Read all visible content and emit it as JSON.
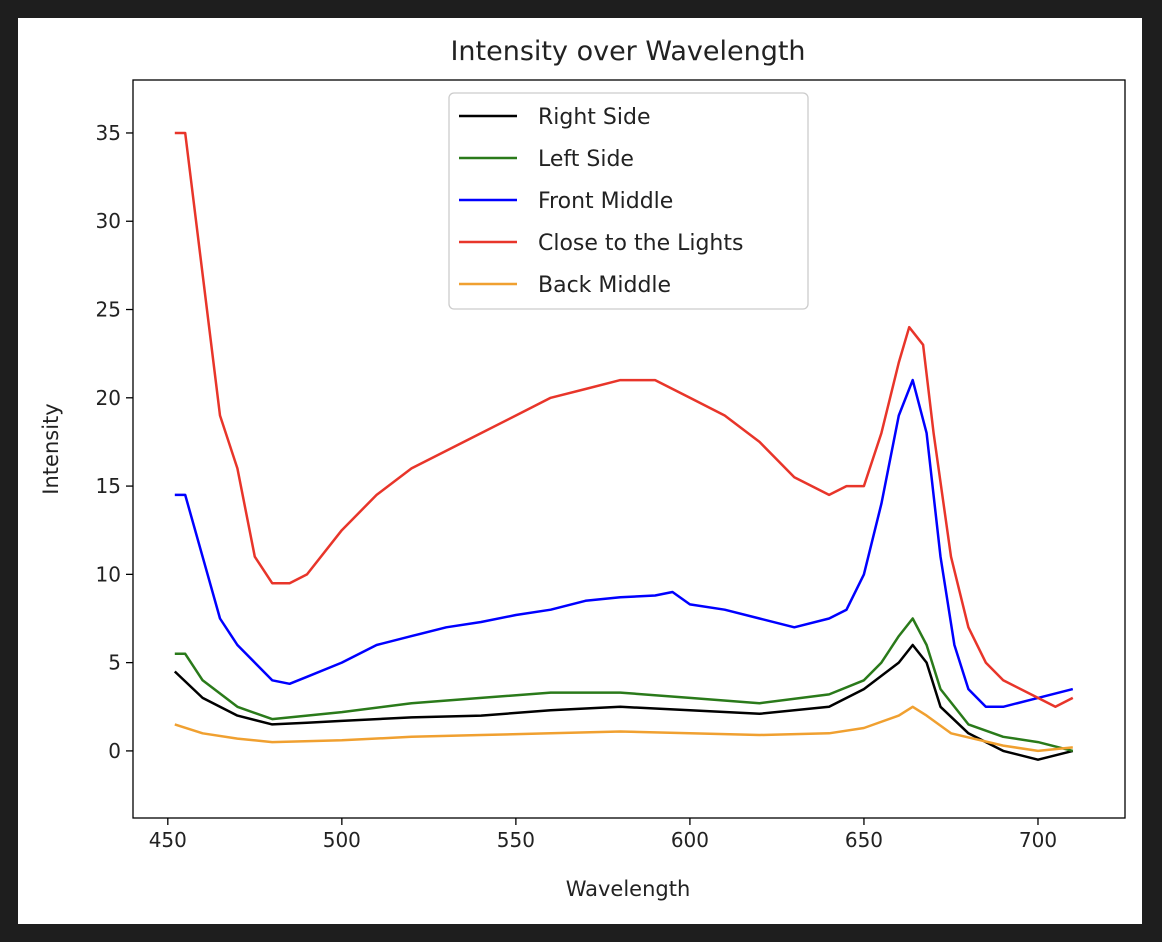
{
  "chart_data": {
    "type": "line",
    "title": "Intensity over Wavelength",
    "xlabel": "Wavelength",
    "ylabel": "Intensity",
    "xlim": [
      440,
      725
    ],
    "ylim": [
      -3.8,
      38
    ],
    "xticks": [
      450,
      500,
      550,
      600,
      650,
      700
    ],
    "yticks": [
      0,
      5,
      10,
      15,
      20,
      25,
      30,
      35
    ],
    "grid": false,
    "legend_position": "top-center",
    "series": [
      {
        "name": "Right Side",
        "color": "#000000",
        "x": [
          452,
          460,
          470,
          480,
          490,
          500,
          520,
          540,
          560,
          580,
          600,
          620,
          640,
          650,
          660,
          664,
          668,
          672,
          680,
          690,
          700,
          710
        ],
        "y": [
          4.5,
          3,
          2,
          1.5,
          1.6,
          1.7,
          1.9,
          2,
          2.3,
          2.5,
          2.3,
          2.1,
          2.5,
          3.5,
          5,
          6,
          5,
          2.5,
          1,
          0,
          -0.5,
          0
        ]
      },
      {
        "name": "Left Side",
        "color": "#2a7a1a",
        "x": [
          452,
          455,
          460,
          470,
          480,
          490,
          500,
          520,
          540,
          560,
          580,
          600,
          620,
          640,
          650,
          655,
          660,
          664,
          668,
          672,
          680,
          690,
          700,
          710
        ],
        "y": [
          5.5,
          5.5,
          4,
          2.5,
          1.8,
          2,
          2.2,
          2.7,
          3,
          3.3,
          3.3,
          3,
          2.7,
          3.2,
          4,
          5,
          6.5,
          7.5,
          6,
          3.5,
          1.5,
          0.8,
          0.5,
          0
        ]
      },
      {
        "name": "Front Middle",
        "color": "#0000ff",
        "x": [
          452,
          455,
          460,
          465,
          470,
          475,
          480,
          485,
          490,
          500,
          510,
          520,
          530,
          540,
          550,
          560,
          570,
          580,
          590,
          595,
          600,
          610,
          620,
          630,
          640,
          645,
          650,
          655,
          660,
          664,
          668,
          672,
          676,
          680,
          685,
          690,
          700,
          710
        ],
        "y": [
          14.5,
          14.5,
          11,
          7.5,
          6,
          5,
          4,
          3.8,
          4.2,
          5,
          6,
          6.5,
          7,
          7.3,
          7.7,
          8,
          8.5,
          8.7,
          8.8,
          9,
          8.3,
          8,
          7.5,
          7,
          7.5,
          8,
          10,
          14,
          19,
          21,
          18,
          11,
          6,
          3.5,
          2.5,
          2.5,
          3,
          3.5
        ]
      },
      {
        "name": "Close to the Lights",
        "color": "#e8352a",
        "x": [
          452,
          455,
          460,
          465,
          470,
          475,
          480,
          485,
          490,
          500,
          510,
          520,
          530,
          540,
          550,
          560,
          570,
          580,
          590,
          600,
          610,
          620,
          630,
          640,
          645,
          650,
          655,
          660,
          663,
          667,
          670,
          675,
          680,
          685,
          690,
          700,
          705,
          710
        ],
        "y": [
          35,
          35,
          27,
          19,
          16,
          11,
          9.5,
          9.5,
          10,
          12.5,
          14.5,
          16,
          17,
          18,
          19,
          20,
          20.5,
          21,
          21,
          20,
          19,
          17.5,
          15.5,
          14.5,
          15,
          15,
          18,
          22,
          24,
          23,
          18,
          11,
          7,
          5,
          4,
          3,
          2.5,
          3
        ]
      },
      {
        "name": "Back Middle",
        "color": "#f0a030",
        "x": [
          452,
          460,
          470,
          480,
          500,
          520,
          540,
          560,
          580,
          600,
          620,
          640,
          650,
          660,
          664,
          668,
          675,
          690,
          700,
          710
        ],
        "y": [
          1.5,
          1,
          0.7,
          0.5,
          0.6,
          0.8,
          0.9,
          1,
          1.1,
          1,
          0.9,
          1,
          1.3,
          2,
          2.5,
          2,
          1,
          0.3,
          0,
          0.2
        ]
      }
    ]
  }
}
